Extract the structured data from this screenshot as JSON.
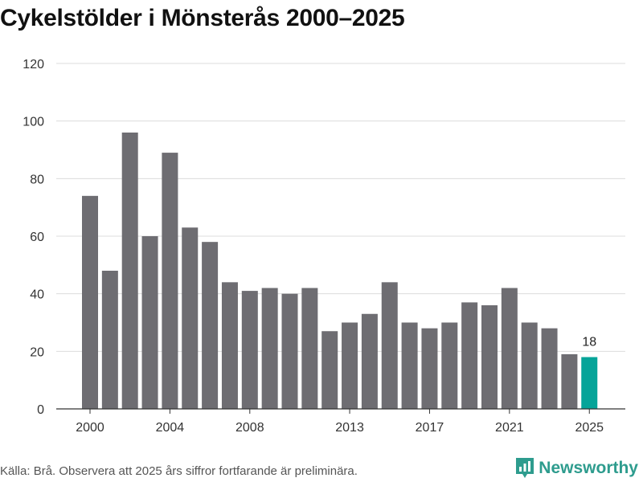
{
  "title": "Cykelstölder i Mönsterås 2000–2025",
  "source": "Källa: Brå. Observera att 2025 års siffror fortfarande är preliminära.",
  "brand": {
    "name": "Newsworthy",
    "color": "#2e9c8e"
  },
  "colors": {
    "bar": "#6e6d72",
    "highlight": "#06a499",
    "grid": "#dcdcdc",
    "axis": "#333333"
  },
  "chart_data": {
    "type": "bar",
    "title": "Cykelstölder i Mönsterås 2000–2025",
    "xlabel": "",
    "ylabel": "",
    "categories": [
      "2000",
      "2001",
      "2002",
      "2003",
      "2004",
      "2005",
      "2006",
      "2007",
      "2008",
      "2009",
      "2010",
      "2011",
      "2012",
      "2013",
      "2014",
      "2015",
      "2016",
      "2017",
      "2018",
      "2019",
      "2020",
      "2021",
      "2022",
      "2023",
      "2024",
      "2025"
    ],
    "values": [
      74,
      48,
      96,
      60,
      89,
      63,
      58,
      44,
      41,
      42,
      40,
      42,
      27,
      30,
      33,
      44,
      30,
      28,
      30,
      37,
      36,
      42,
      30,
      28,
      19,
      18
    ],
    "ylim": [
      0,
      120
    ],
    "yticks": [
      0,
      20,
      40,
      60,
      80,
      100,
      120
    ],
    "xtick_labels": [
      "2000",
      "2004",
      "2008",
      "2013",
      "2017",
      "2021",
      "2025"
    ],
    "highlight": {
      "category": "2025",
      "label": "18"
    },
    "grid": true
  }
}
